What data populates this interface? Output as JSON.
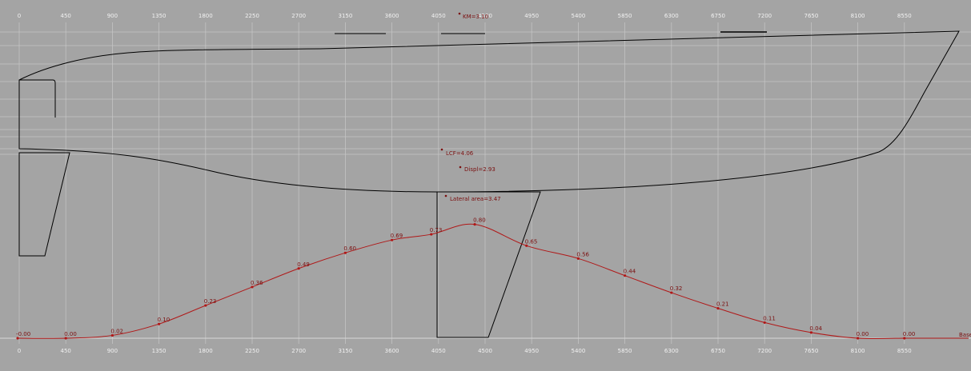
{
  "colors": {
    "background": "#a4a4a4",
    "grid": "#c9c9c9",
    "hull": "#000000",
    "curve": "#b01818",
    "curve_label": "#7a0e0e"
  },
  "chart_data": {
    "type": "line",
    "x_ticks_top": [
      "0",
      "450",
      "900",
      "1350",
      "1800",
      "2250",
      "2700",
      "3150",
      "3600",
      "4050",
      "4500",
      "4950",
      "5400",
      "5850",
      "6300",
      "6750",
      "7200",
      "7650",
      "8100",
      "8550"
    ],
    "x_ticks_bottom": [
      "0",
      "450",
      "900",
      "1350",
      "1800",
      "2250",
      "2700",
      "3150",
      "3600",
      "4050",
      "4500",
      "4950",
      "5400",
      "5850",
      "6300",
      "6750",
      "7200",
      "7650",
      "8100",
      "8550"
    ],
    "xlim": [
      0,
      9200
    ],
    "grid": true,
    "series": [
      {
        "x": [
          -15,
          450,
          900,
          1350,
          1800,
          2250,
          2700,
          3150,
          3600,
          3980,
          4400,
          4900,
          5400,
          5850,
          6300,
          6750,
          7200,
          7650,
          8100,
          8550
        ],
        "values": [
          0.0,
          0.0,
          0.02,
          0.1,
          0.23,
          0.36,
          0.49,
          0.6,
          0.69,
          0.73,
          0.8,
          0.65,
          0.56,
          0.44,
          0.32,
          0.21,
          0.11,
          0.04,
          0.0,
          0.0
        ],
        "labels": [
          "-0.00",
          "0.00",
          "0.02",
          "0.10",
          "0.23",
          "0.36",
          "0.49",
          "0.60",
          "0.69",
          "0.73",
          "0.80",
          "0.65",
          "0.56",
          "0.44",
          "0.32",
          "0.21",
          "0.11",
          "0.04",
          "0.00",
          "0.00"
        ]
      }
    ],
    "baseline_label": "Base",
    "annotations": [
      {
        "text": "KM=3.10"
      },
      {
        "text": "LCF=4.06"
      },
      {
        "text": "Displ=2.93"
      },
      {
        "text": "Lateral area=3.47"
      }
    ]
  }
}
